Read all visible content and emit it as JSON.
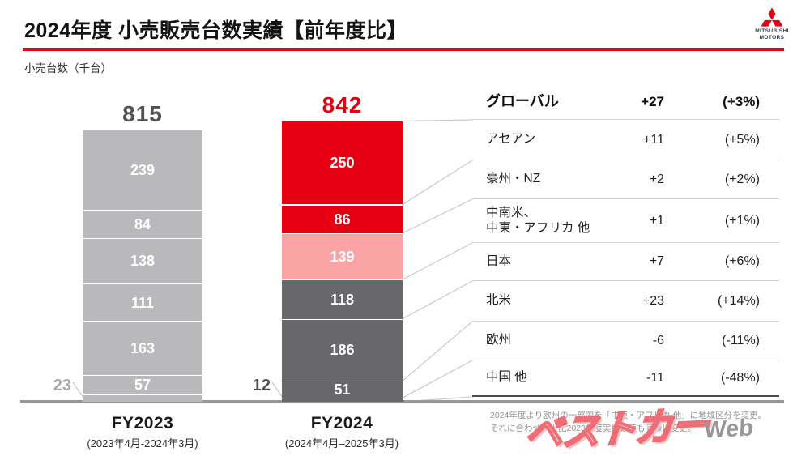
{
  "header": {
    "title": "2024年度 小売販売台数実績【前年度比】",
    "unit_label": "小売台数（千台）",
    "brand_line1": "MITSUBISHI",
    "brand_line2": "MOTORS"
  },
  "colors": {
    "accent_red": "#e60012",
    "pink": "#f9a3a5",
    "dark_gray": "#68686c",
    "light_gray": "#b9b9bc",
    "leader_line": "#c9c9cc",
    "baseline": "#98989c"
  },
  "chart_data": {
    "type": "bar",
    "stacked": true,
    "title": "小売台数（千台）",
    "categories": [
      "FY2023",
      "FY2024"
    ],
    "category_subtitles": [
      "(2023年4月-2024年3月)",
      "(2024年4月–2025年3月)"
    ],
    "totals": [
      815,
      842
    ],
    "segments_top_to_bottom": [
      "アセアン",
      "豪州・NZ",
      "中南米、中東・アフリカ 他",
      "日本",
      "北米",
      "欧州",
      "中国 他"
    ],
    "series": [
      {
        "name": "FY2023",
        "values": [
          239,
          84,
          138,
          111,
          163,
          57,
          23
        ],
        "segment_colors": [
          "#b9b9bc",
          "#b9b9bc",
          "#b9b9bc",
          "#b9b9bc",
          "#b9b9bc",
          "#b9b9bc",
          "#b9b9bc"
        ],
        "total_color": "#515156",
        "outside_label_color": "#a9a9ad"
      },
      {
        "name": "FY2024",
        "values": [
          250,
          86,
          139,
          118,
          186,
          51,
          12
        ],
        "segment_colors": [
          "#e60012",
          "#e60012",
          "#f9a3a5",
          "#68686c",
          "#68686c",
          "#68686c",
          "#68686c"
        ],
        "total_color": "#dc0212",
        "outside_label_color": "#515157"
      }
    ],
    "ylim": [
      0,
      842
    ],
    "grid": false,
    "legend": false
  },
  "table": {
    "rows": [
      {
        "region": "グローバル",
        "change": "+27",
        "pct": "(+3%)",
        "header": true
      },
      {
        "region": "アセアン",
        "change": "+11",
        "pct": "(+5%)"
      },
      {
        "region": "豪州・NZ",
        "change": "+2",
        "pct": "(+2%)"
      },
      {
        "region": "中南米、\n中東・アフリカ 他",
        "change": "+1",
        "pct": "(+1%)"
      },
      {
        "region": "日本",
        "change": "+7",
        "pct": "(+6%)"
      },
      {
        "region": "北米",
        "change": "+23",
        "pct": "(+14%)"
      },
      {
        "region": "欧州",
        "change": "-6",
        "pct": "(-11%)"
      },
      {
        "region": "中国 他",
        "change": "-11",
        "pct": "(-48%)"
      }
    ]
  },
  "footnote": {
    "line1": "2024年度より欧州の一部国を「中東・アフリカ 他」に地域区分を変更。",
    "line2": "それに合わせ、上記2023年度実績数値も同様に変更。"
  },
  "watermark": {
    "text": "ベストカー",
    "suffix": "Web"
  }
}
